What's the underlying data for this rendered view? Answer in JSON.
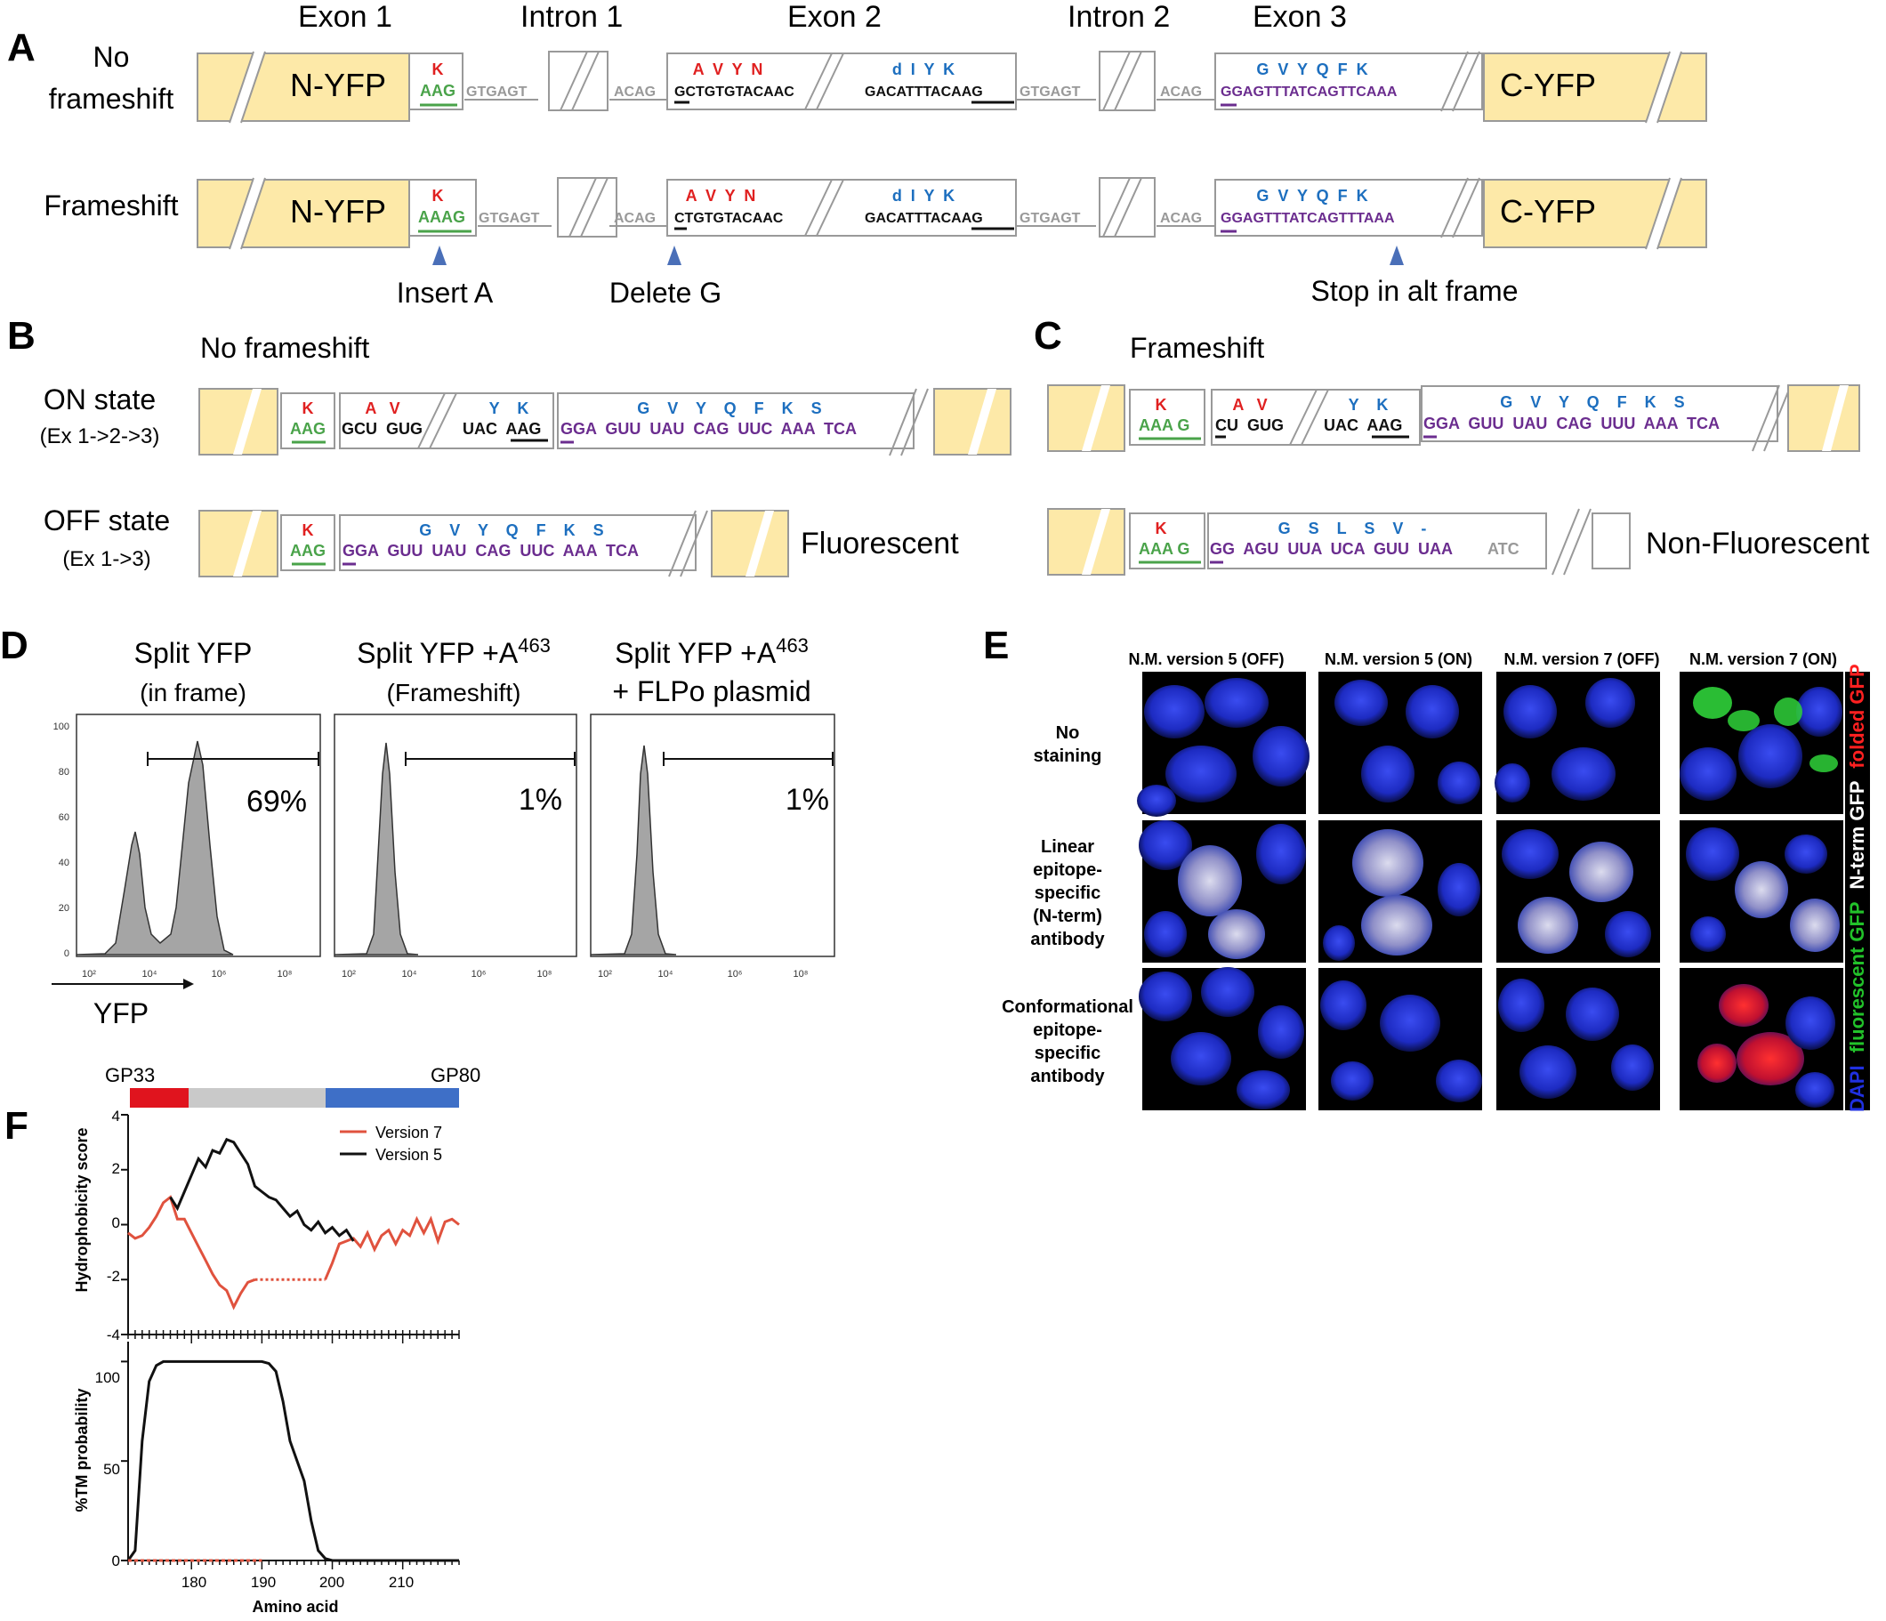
{
  "panel_labels": {
    "A": "A",
    "B": "B",
    "C": "C",
    "D": "D",
    "E": "E",
    "F": "F"
  },
  "panelA": {
    "headers": {
      "exon1": "Exon 1",
      "intron1": "Intron 1",
      "exon2": "Exon 2",
      "intron2": "Intron 2",
      "exon3": "Exon 3"
    },
    "row_no": {
      "label1": "No",
      "label2": "frameshift"
    },
    "row_fs": {
      "label": "Frameshift"
    },
    "nyfp": "N-YFP",
    "cyfp": "C-YFP",
    "no_fs": {
      "k_aa": "K",
      "aag": "AAG",
      "gtgagt1": "GTGAGT",
      "acag1": "ACAG",
      "aa_e2": "A  V  Y  N",
      "e2_seq": "GCTGTGTACAAC",
      "aa_e2b": "d  I  Y  K",
      "e2b_seq": "GACATTTACAAG",
      "gtgagt2": "GTGAGT",
      "acag2": "ACAG",
      "aa_e3": "G  V  Y  Q  F  K",
      "e3_seq": "GGAGTTTATCAGTTCAAA"
    },
    "fs": {
      "k_aa": "K",
      "aag": "AAAG",
      "gtgagt1": "GTGAGT",
      "acag1": "ACAG",
      "aa_e2": "A  V  Y  N",
      "e2_seq": "CTGTGTACAAC",
      "aa_e2b": "d  I  Y  K",
      "e2b_seq": "GACATTTACAAG",
      "gtgagt2": "GTGAGT",
      "acag2": "ACAG",
      "aa_e3": "G  V  Y  Q  F  K",
      "e3_seq": "GGAGTTTATCAGTTTAAA"
    },
    "annotations": {
      "insert": "Insert A",
      "delete": "Delete G",
      "stop": "Stop in alt frame"
    }
  },
  "panelB": {
    "title": "No frameshift",
    "on_label": "ON state",
    "on_sub": "(Ex 1->2->3)",
    "off_label": "OFF state",
    "off_sub": "(Ex 1->3)",
    "on": {
      "k": "K",
      "aag": "AAG",
      "av": "A   V",
      "gcu": "GCU  GUG",
      "yk": "Y    K",
      "uac": "UAC  AAG",
      "aa3": "G    V    Y    Q    F    K    S",
      "e3": "GGA  GUU  UAU  CAG  UUC  AAA  TCA"
    },
    "off": {
      "k": "K",
      "aag": "AAG",
      "aa3": "G    V    Y    Q    F    K    S",
      "e3": "GGA  GUU  UAU  CAG  UUC  AAA  TCA"
    },
    "result": "Fluorescent"
  },
  "panelC": {
    "title": "Frameshift",
    "on": {
      "k": "K",
      "aag": "AAA G",
      "av": "A   V",
      "cu": "CU  GUG",
      "yk": "Y    K",
      "uac": "UAC  AAG",
      "aa3": "G    V    Y    Q    F    K    S",
      "e3": "GGA  GUU  UAU  CAG  UUU  AAA  TCA"
    },
    "off": {
      "k": "K",
      "aag": "AAA G",
      "aa3": "G    S    L    S    V    -",
      "e3": "GG  AGU  UUA  UCA  GUU  UAA",
      "atc": "ATC"
    },
    "result": "Non-Fluorescent"
  },
  "panelD": {
    "xlabel": "YFP",
    "plots": [
      {
        "title1": "Split YFP",
        "title2": "(in frame)",
        "pct": "69%"
      },
      {
        "title1": "Split YFP +A",
        "sup": "463",
        "title2": "(Frameshift)",
        "pct": "1%"
      },
      {
        "title1": "Split YFP +A",
        "sup": "463",
        "title2": "+ FLPo plasmid",
        "pct": "1%"
      }
    ],
    "yticks": [
      "100",
      "80",
      "60",
      "40",
      "20",
      "0"
    ],
    "xticks": [
      "10²",
      "10⁴",
      "10⁶",
      "10⁸"
    ]
  },
  "panelE": {
    "columns": [
      "N.M. version 5 (OFF)",
      "N.M. version 5 (ON)",
      "N.M. version 7 (OFF)",
      "N.M. version 7 (ON)"
    ],
    "rows": [
      [
        "No",
        "staining"
      ],
      [
        "Linear",
        "epitope-",
        "specific",
        "(N-term)",
        "antibody"
      ],
      [
        "Conformational",
        "epitope-",
        "specific",
        "antibody"
      ]
    ],
    "legend": {
      "dapi": "DAPI",
      "fluor": "fluorescent GFP",
      "nterm": "N-term GFP",
      "folded": "folded GFP"
    },
    "colors": {
      "dapi": "#1f2bd6",
      "fluor": "#22c22a",
      "nterm": "#e8e8e8",
      "folded": "#e82020"
    }
  },
  "chart_data": [
    {
      "type": "line",
      "title": "",
      "ylabel": "Hydrophobicity score",
      "xlabel": "",
      "ylim": [
        -4,
        4
      ],
      "xlim": [
        171,
        218
      ],
      "yticks": [
        "4",
        "2",
        "0",
        "-2",
        "-4"
      ],
      "bar_labels": {
        "left": "GP33",
        "right": "GP80"
      },
      "series": [
        {
          "name": "Version 7",
          "color": "#e0523e",
          "x": [
            171,
            172,
            173,
            174,
            175,
            176,
            177,
            178,
            179,
            180,
            181,
            182,
            183,
            184,
            185,
            186,
            187,
            188,
            189,
            190,
            191,
            192,
            193,
            194,
            195,
            196,
            197,
            198,
            199,
            200,
            201,
            202,
            203,
            204,
            205,
            206,
            207,
            208,
            209,
            210,
            211,
            212,
            213,
            214,
            215,
            216,
            217,
            218
          ],
          "y": [
            -0.3,
            -0.5,
            -0.4,
            -0.1,
            0.3,
            0.8,
            1.0,
            0.2,
            0.2,
            -0.3,
            -0.8,
            -1.3,
            -1.8,
            -2.2,
            -2.4,
            -3.0,
            -2.5,
            -2.1,
            -2.0,
            -2.0,
            -2.0,
            -2.0,
            -2.0,
            -2.0,
            -2.0,
            -2.0,
            -2.0,
            -2.0,
            -2.0,
            -1.4,
            -0.7,
            -0.6,
            -0.5,
            -0.8,
            -0.3,
            -0.9,
            -0.4,
            -0.2,
            -0.7,
            -0.2,
            -0.4,
            0.2,
            -0.3,
            0.2,
            -0.6,
            0.1,
            0.2,
            0.0
          ]
        },
        {
          "name": "Version 5",
          "color": "#111111",
          "x": [
            177,
            178,
            179,
            180,
            181,
            182,
            183,
            184,
            185,
            186,
            187,
            188,
            189,
            190,
            191,
            192,
            193,
            194,
            195,
            196,
            197,
            198,
            199,
            200,
            201,
            202,
            203
          ],
          "y": [
            1.0,
            0.6,
            1.2,
            1.8,
            2.4,
            2.1,
            2.7,
            2.6,
            3.1,
            3.0,
            2.6,
            2.2,
            1.4,
            1.2,
            1.0,
            0.9,
            0.6,
            0.3,
            0.5,
            0.0,
            -0.2,
            0.1,
            -0.3,
            -0.1,
            -0.4,
            -0.2,
            -0.6
          ]
        }
      ]
    },
    {
      "type": "line",
      "title": "",
      "ylabel": "%TM probability",
      "xlabel": "Amino acid",
      "ylim": [
        0,
        110
      ],
      "xlim": [
        171,
        218
      ],
      "yticks": [
        "100",
        "50",
        "0"
      ],
      "xticks": [
        "180",
        "190",
        "200",
        "210"
      ],
      "series": [
        {
          "name": "Version 5",
          "color": "#111111",
          "x": [
            171,
            172,
            173,
            174,
            175,
            176,
            177,
            178,
            180,
            185,
            190,
            191,
            192,
            193,
            194,
            195,
            196,
            197,
            198,
            199,
            200,
            218
          ],
          "y": [
            0,
            5,
            60,
            90,
            98,
            100,
            100,
            100,
            100,
            100,
            100,
            99,
            95,
            80,
            60,
            50,
            40,
            20,
            5,
            1,
            0,
            0
          ]
        },
        {
          "name": "Version 7",
          "color": "#e0523e",
          "x": [
            171,
            190
          ],
          "y": [
            0,
            0
          ]
        }
      ]
    }
  ]
}
